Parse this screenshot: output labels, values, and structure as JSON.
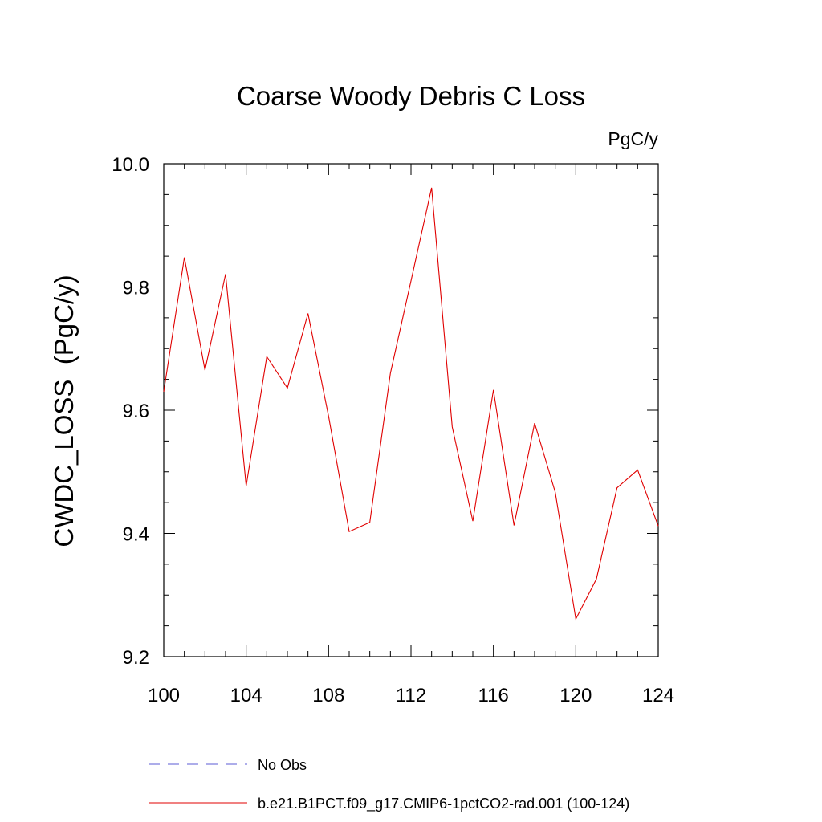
{
  "chart_data": {
    "type": "line",
    "title": "Coarse Woody Debris C Loss",
    "units_label": "PgC/y",
    "xlabel": "",
    "ylabel": "CWDC_LOSS  (PgC/y)",
    "xlim": [
      100,
      124
    ],
    "ylim": [
      9.2,
      10.0
    ],
    "x_ticks": [
      "100",
      "104",
      "108",
      "112",
      "116",
      "120",
      "124"
    ],
    "y_ticks": [
      "9.2",
      "9.4",
      "9.6",
      "9.8",
      "10.0"
    ],
    "grid": false,
    "legend_position": "bottom",
    "legend": [
      {
        "label": "No Obs",
        "color": "#5b5bd6",
        "style": "dashed"
      },
      {
        "label": "b.e21.B1PCT.f09_g17.CMIP6-1pctCO2-rad.001 (100-124)",
        "color": "#e00000",
        "style": "solid"
      }
    ],
    "series": [
      {
        "name": "b.e21.B1PCT.f09_g17.CMIP6-1pctCO2-rad.001 (100-124)",
        "color": "#e00000",
        "x": [
          100,
          101,
          102,
          103,
          104,
          105,
          106,
          107,
          108,
          109,
          110,
          111,
          112,
          113,
          114,
          115,
          116,
          117,
          118,
          119,
          120,
          121,
          122,
          123,
          124
        ],
        "y": [
          9.63,
          9.848,
          9.665,
          9.821,
          9.477,
          9.687,
          9.636,
          9.757,
          9.59,
          9.403,
          9.418,
          9.66,
          9.81,
          9.961,
          9.573,
          9.42,
          9.633,
          9.413,
          9.579,
          9.467,
          9.261,
          9.326,
          9.474,
          9.503,
          9.412
        ]
      }
    ]
  }
}
